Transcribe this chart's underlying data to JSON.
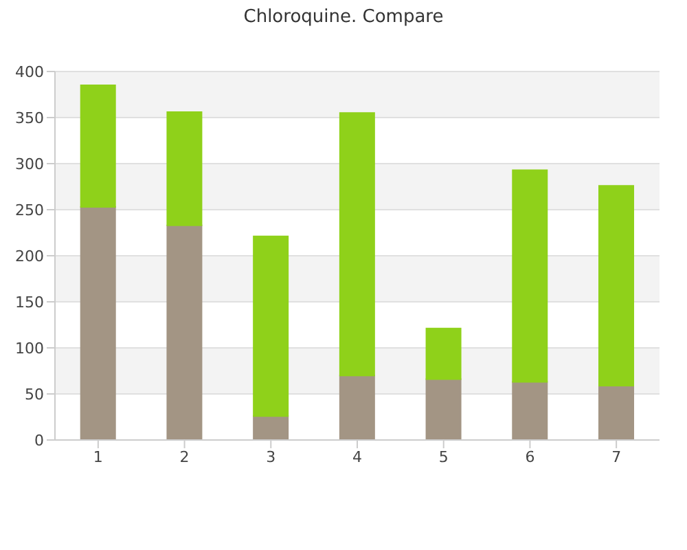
{
  "chart_data": {
    "type": "bar",
    "title": "Chloroquine. Compare",
    "categories": [
      "1",
      "2",
      "3",
      "4",
      "5",
      "6",
      "7"
    ],
    "stacked": true,
    "series": [
      {
        "color": "#a39584",
        "values": [
          253,
          233,
          26,
          70,
          66,
          63,
          59
        ]
      },
      {
        "color": "#8fd11a",
        "values": [
          132,
          123,
          195,
          285,
          55,
          230,
          217
        ]
      }
    ],
    "ylim": [
      0,
      400
    ],
    "yticks": [
      0,
      50,
      100,
      150,
      200,
      250,
      300,
      350,
      400
    ],
    "grid": "y"
  }
}
